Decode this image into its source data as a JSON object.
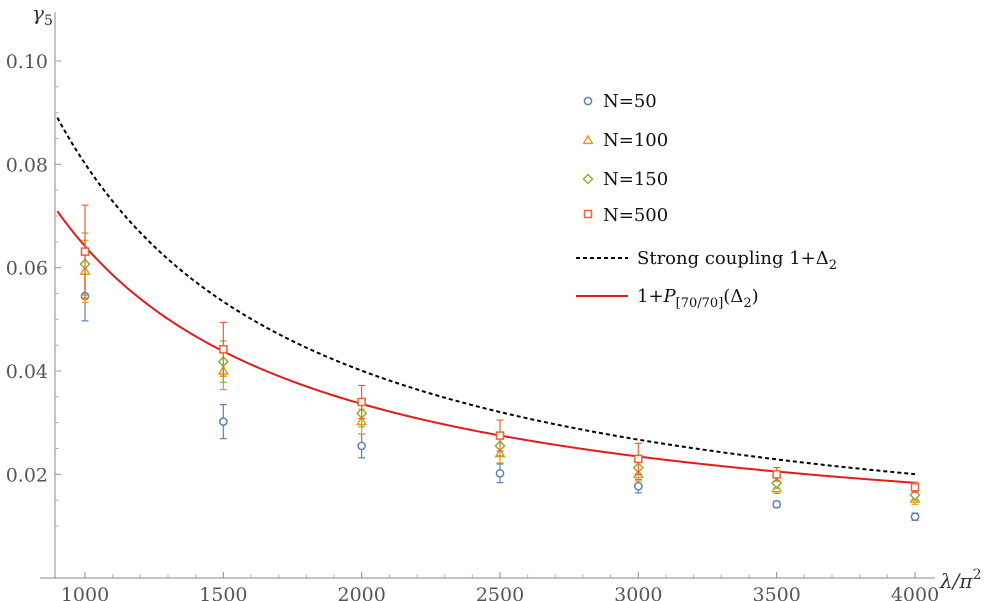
{
  "chart_data": {
    "type": "scatter",
    "xlabel": "λ/π²",
    "ylabel": "γ₅",
    "xlim": [
      900,
      4070
    ],
    "ylim": [
      0.0,
      0.105
    ],
    "x_ticks": [
      1000,
      1500,
      2000,
      2500,
      3000,
      3500,
      4000
    ],
    "x_tick_labels": [
      "1000",
      "1500",
      "2000",
      "2500",
      "3000",
      "3500",
      "4000"
    ],
    "y_ticks": [
      0.02,
      0.04,
      0.06,
      0.08,
      0.1
    ],
    "y_tick_labels": [
      "0.02",
      "0.04",
      "0.06",
      "0.08",
      "0.10"
    ],
    "legend_position": "top-right",
    "series": [
      {
        "name": "N=50",
        "marker": "circle",
        "color": "#5E81B5",
        "x": [
          1000,
          1500,
          2000,
          2500,
          3000,
          3500,
          4000
        ],
        "y": [
          0.0545,
          0.0302,
          0.0255,
          0.0202,
          0.0177,
          0.0142,
          0.0118
        ],
        "err": [
          0.0048,
          0.0033,
          0.0023,
          0.0018,
          0.0013,
          0.0006,
          0.0007
        ]
      },
      {
        "name": "N=100",
        "marker": "triangle",
        "color": "#E19C24",
        "x": [
          1000,
          1500,
          2000,
          2500,
          3000,
          3500,
          4000
        ],
        "y": [
          0.0593,
          0.04,
          0.0302,
          0.024,
          0.02,
          0.0172,
          0.0152
        ],
        "err": [
          0.006,
          0.0036,
          0.0024,
          0.0018,
          0.0013,
          0.0009,
          0.001
        ]
      },
      {
        "name": "N=150",
        "marker": "diamond",
        "color": "#8FB032",
        "x": [
          1000,
          1500,
          2000,
          2500,
          3000,
          3500,
          4000
        ],
        "y": [
          0.0607,
          0.0418,
          0.0318,
          0.0255,
          0.0213,
          0.0183,
          0.016
        ],
        "err": [
          0.006,
          0.004,
          0.0026,
          0.0019,
          0.0014,
          0.001,
          0.001
        ]
      },
      {
        "name": "N=500",
        "marker": "square",
        "color": "#EB6235",
        "x": [
          1000,
          1500,
          2000,
          2500,
          3000,
          3500,
          4000
        ],
        "y": [
          0.0631,
          0.0442,
          0.034,
          0.0275,
          0.023,
          0.02,
          0.0175
        ],
        "err": [
          0.009,
          0.0052,
          0.0032,
          0.003,
          0.003,
          0.0013,
          0.001
        ]
      }
    ],
    "curves": [
      {
        "name": "Strong coupling 1+Δ₂",
        "style": "dashed",
        "color": "#000000",
        "x": [
          900,
          1000,
          1500,
          2000,
          2500,
          3000,
          3500,
          4000
        ],
        "y": [
          0.089,
          0.0802,
          0.0534,
          0.0401,
          0.0321,
          0.0267,
          0.0229,
          0.02
        ]
      },
      {
        "name": "1+P[70/70](Δ₂)",
        "style": "solid",
        "color": "#E41A1C",
        "x": [
          900,
          1000,
          1500,
          2000,
          2500,
          3000,
          3500,
          4000
        ],
        "y": [
          0.0702,
          0.0645,
          0.0445,
          0.034,
          0.0276,
          0.0233,
          0.0203,
          0.018
        ]
      }
    ]
  },
  "legend": {
    "n50": "N=50",
    "n100": "N=100",
    "n150": "N=150",
    "n500": "N=500",
    "strong_prefix": "Strong coupling 1+Δ",
    "strong_sub": "2",
    "pade_prefix": "1+",
    "pade_p": "P",
    "pade_sub": "[70/70]",
    "pade_suffix_open": "(Δ",
    "pade_suffix_sub": "2",
    "pade_suffix_close": ")"
  },
  "axes": {
    "x_label_main": "λ/π",
    "x_label_sup": "2",
    "y_label_main": "γ",
    "y_label_sub": "5"
  }
}
